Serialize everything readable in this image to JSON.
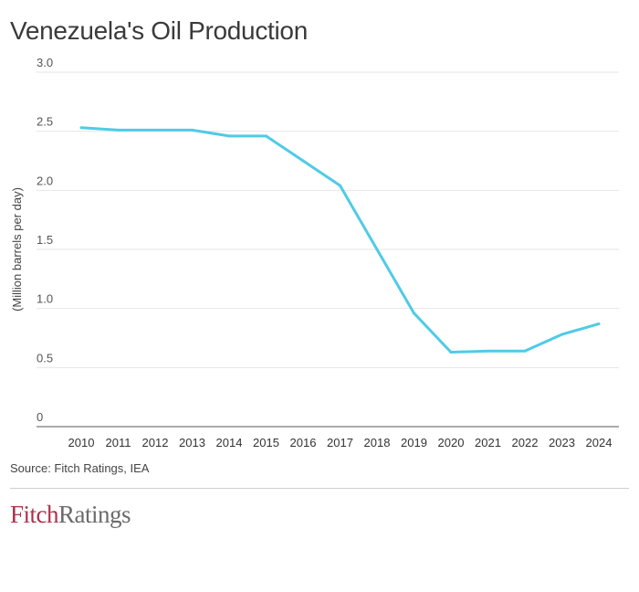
{
  "chart_data": {
    "type": "line",
    "title": "Venezuela's Oil Production",
    "xlabel": "",
    "ylabel": "(Million barrels per day)",
    "ylim": [
      0,
      3.0
    ],
    "yticks": [
      "0",
      "0.5",
      "1.0",
      "1.5",
      "2.0",
      "2.5",
      "3.0"
    ],
    "grid": true,
    "categories": [
      "2010",
      "2011",
      "2012",
      "2013",
      "2014",
      "2015",
      "2016",
      "2017",
      "2018",
      "2019",
      "2020",
      "2021",
      "2022",
      "2023",
      "2024"
    ],
    "series": [
      {
        "values": [
          2.53,
          2.51,
          2.51,
          2.51,
          2.46,
          2.46,
          2.25,
          2.04,
          1.5,
          0.96,
          0.63,
          0.64,
          0.64,
          0.78,
          0.87
        ],
        "color": "#4fcbe6"
      }
    ]
  },
  "source": "Source: Fitch Ratings, IEA",
  "logo": {
    "part1": "Fitch",
    "part2": "Ratings",
    "colors": {
      "fitch": "#b0304e",
      "ratings": "#6b6b6b"
    }
  }
}
